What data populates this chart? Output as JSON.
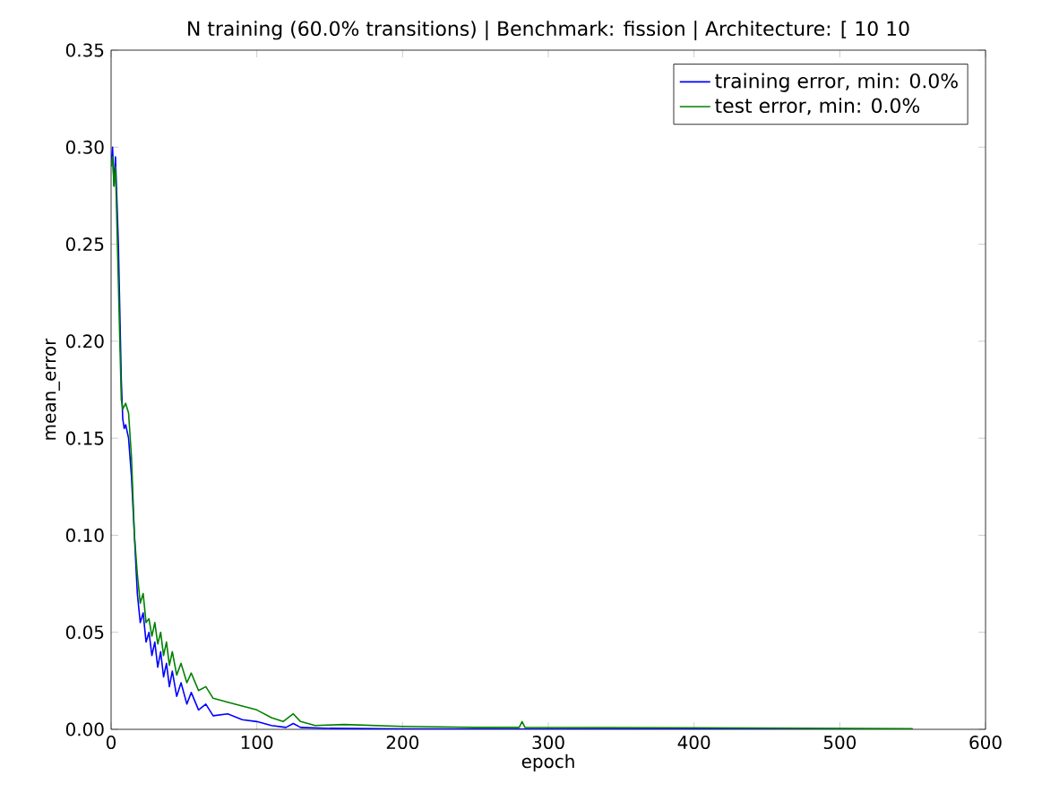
{
  "chart_data": {
    "type": "line",
    "title": "N training (60.0% transitions) | Benchmark: fission | Architecture: [ 10 10",
    "xlabel": "epoch",
    "ylabel": "mean_error",
    "xlim": [
      0,
      600
    ],
    "ylim": [
      0,
      0.35
    ],
    "xticks": [
      0,
      100,
      200,
      300,
      400,
      500,
      600
    ],
    "yticks": [
      {
        "value": 0,
        "label": "0.00"
      },
      {
        "value": 0.05,
        "label": "0.05"
      },
      {
        "value": 0.1,
        "label": "0.10"
      },
      {
        "value": 0.15,
        "label": "0.15"
      },
      {
        "value": 0.2,
        "label": "0.20"
      },
      {
        "value": 0.25,
        "label": "0.25"
      },
      {
        "value": 0.3,
        "label": "0.30"
      },
      {
        "value": 0.35,
        "label": "0.35"
      }
    ],
    "legend": "top right",
    "grid": false,
    "series": [
      {
        "name": "training error, min: 0.0%",
        "color": "#0000ff",
        "x": [
          0,
          1,
          2,
          3,
          5,
          7,
          8,
          9,
          10,
          12,
          14,
          16,
          18,
          20,
          22,
          24,
          26,
          28,
          30,
          32,
          34,
          36,
          38,
          40,
          42,
          45,
          48,
          52,
          55,
          60,
          65,
          70,
          80,
          90,
          100,
          110,
          120,
          125,
          130,
          150,
          200,
          300,
          400,
          550
        ],
        "values": [
          0.29,
          0.3,
          0.28,
          0.295,
          0.25,
          0.18,
          0.16,
          0.155,
          0.157,
          0.15,
          0.13,
          0.1,
          0.07,
          0.055,
          0.06,
          0.045,
          0.05,
          0.038,
          0.045,
          0.032,
          0.04,
          0.027,
          0.034,
          0.022,
          0.03,
          0.017,
          0.024,
          0.013,
          0.019,
          0.01,
          0.013,
          0.007,
          0.008,
          0.005,
          0.004,
          0.002,
          0.001,
          0.003,
          0.001,
          0.0005,
          0.0002,
          0.0001,
          0.0001,
          0.0
        ]
      },
      {
        "name": "test error, min: 0.0%",
        "color": "#008000",
        "x": [
          0,
          1,
          2,
          3,
          5,
          7,
          8,
          10,
          12,
          14,
          16,
          18,
          20,
          22,
          24,
          26,
          28,
          30,
          32,
          34,
          36,
          38,
          40,
          42,
          45,
          48,
          52,
          55,
          60,
          65,
          70,
          80,
          90,
          100,
          110,
          118,
          125,
          130,
          140,
          160,
          200,
          250,
          280,
          282,
          284,
          400,
          550
        ],
        "values": [
          0.29,
          0.295,
          0.28,
          0.29,
          0.23,
          0.17,
          0.165,
          0.168,
          0.163,
          0.14,
          0.1,
          0.08,
          0.065,
          0.07,
          0.055,
          0.057,
          0.048,
          0.055,
          0.044,
          0.05,
          0.038,
          0.045,
          0.033,
          0.04,
          0.028,
          0.034,
          0.024,
          0.029,
          0.02,
          0.022,
          0.016,
          0.014,
          0.012,
          0.01,
          0.006,
          0.004,
          0.008,
          0.004,
          0.002,
          0.0025,
          0.0015,
          0.001,
          0.001,
          0.004,
          0.001,
          0.0008,
          0.0003
        ]
      }
    ]
  }
}
